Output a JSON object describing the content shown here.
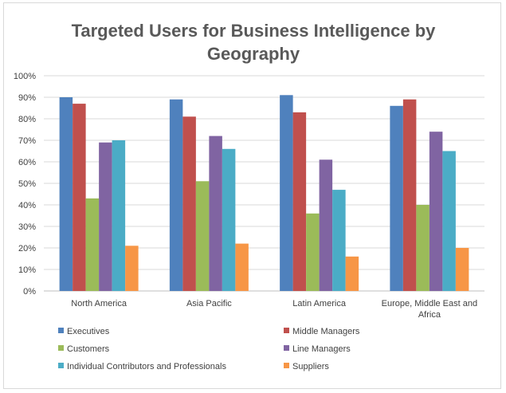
{
  "chart_data": {
    "type": "bar",
    "title": "Targeted Users for Business Intelligence by Geography",
    "title_lines": [
      "Targeted Users for Business Intelligence by",
      "Geography"
    ],
    "categories": [
      "North America",
      "Asia Pacific",
      "Latin America",
      "Europe, Middle East and Africa"
    ],
    "category_lines": [
      [
        "North America"
      ],
      [
        "Asia Pacific"
      ],
      [
        "Latin America"
      ],
      [
        "Europe, Middle East and",
        "Africa"
      ]
    ],
    "ylim": [
      0,
      100
    ],
    "y_ticks": [
      0,
      10,
      20,
      30,
      40,
      50,
      60,
      70,
      80,
      90,
      100
    ],
    "y_tick_labels": [
      "0%",
      "10%",
      "20%",
      "30%",
      "40%",
      "50%",
      "60%",
      "70%",
      "80%",
      "90%",
      "100%"
    ],
    "grid": true,
    "legend_position": "bottom",
    "series": [
      {
        "name": "Executives",
        "color": "#4f81bd",
        "values": [
          90,
          89,
          91,
          86
        ]
      },
      {
        "name": "Middle Managers",
        "color": "#c0504d",
        "values": [
          87,
          81,
          83,
          89
        ]
      },
      {
        "name": "Customers",
        "color": "#9bbb59",
        "values": [
          43,
          51,
          36,
          40
        ]
      },
      {
        "name": "Line Managers",
        "color": "#8064a2",
        "values": [
          69,
          72,
          61,
          74
        ]
      },
      {
        "name": "Individual Contributors and Professionals",
        "color": "#4bacc6",
        "values": [
          70,
          66,
          47,
          65
        ]
      },
      {
        "name": "Suppliers",
        "color": "#f79646",
        "values": [
          21,
          22,
          16,
          20
        ]
      }
    ]
  }
}
